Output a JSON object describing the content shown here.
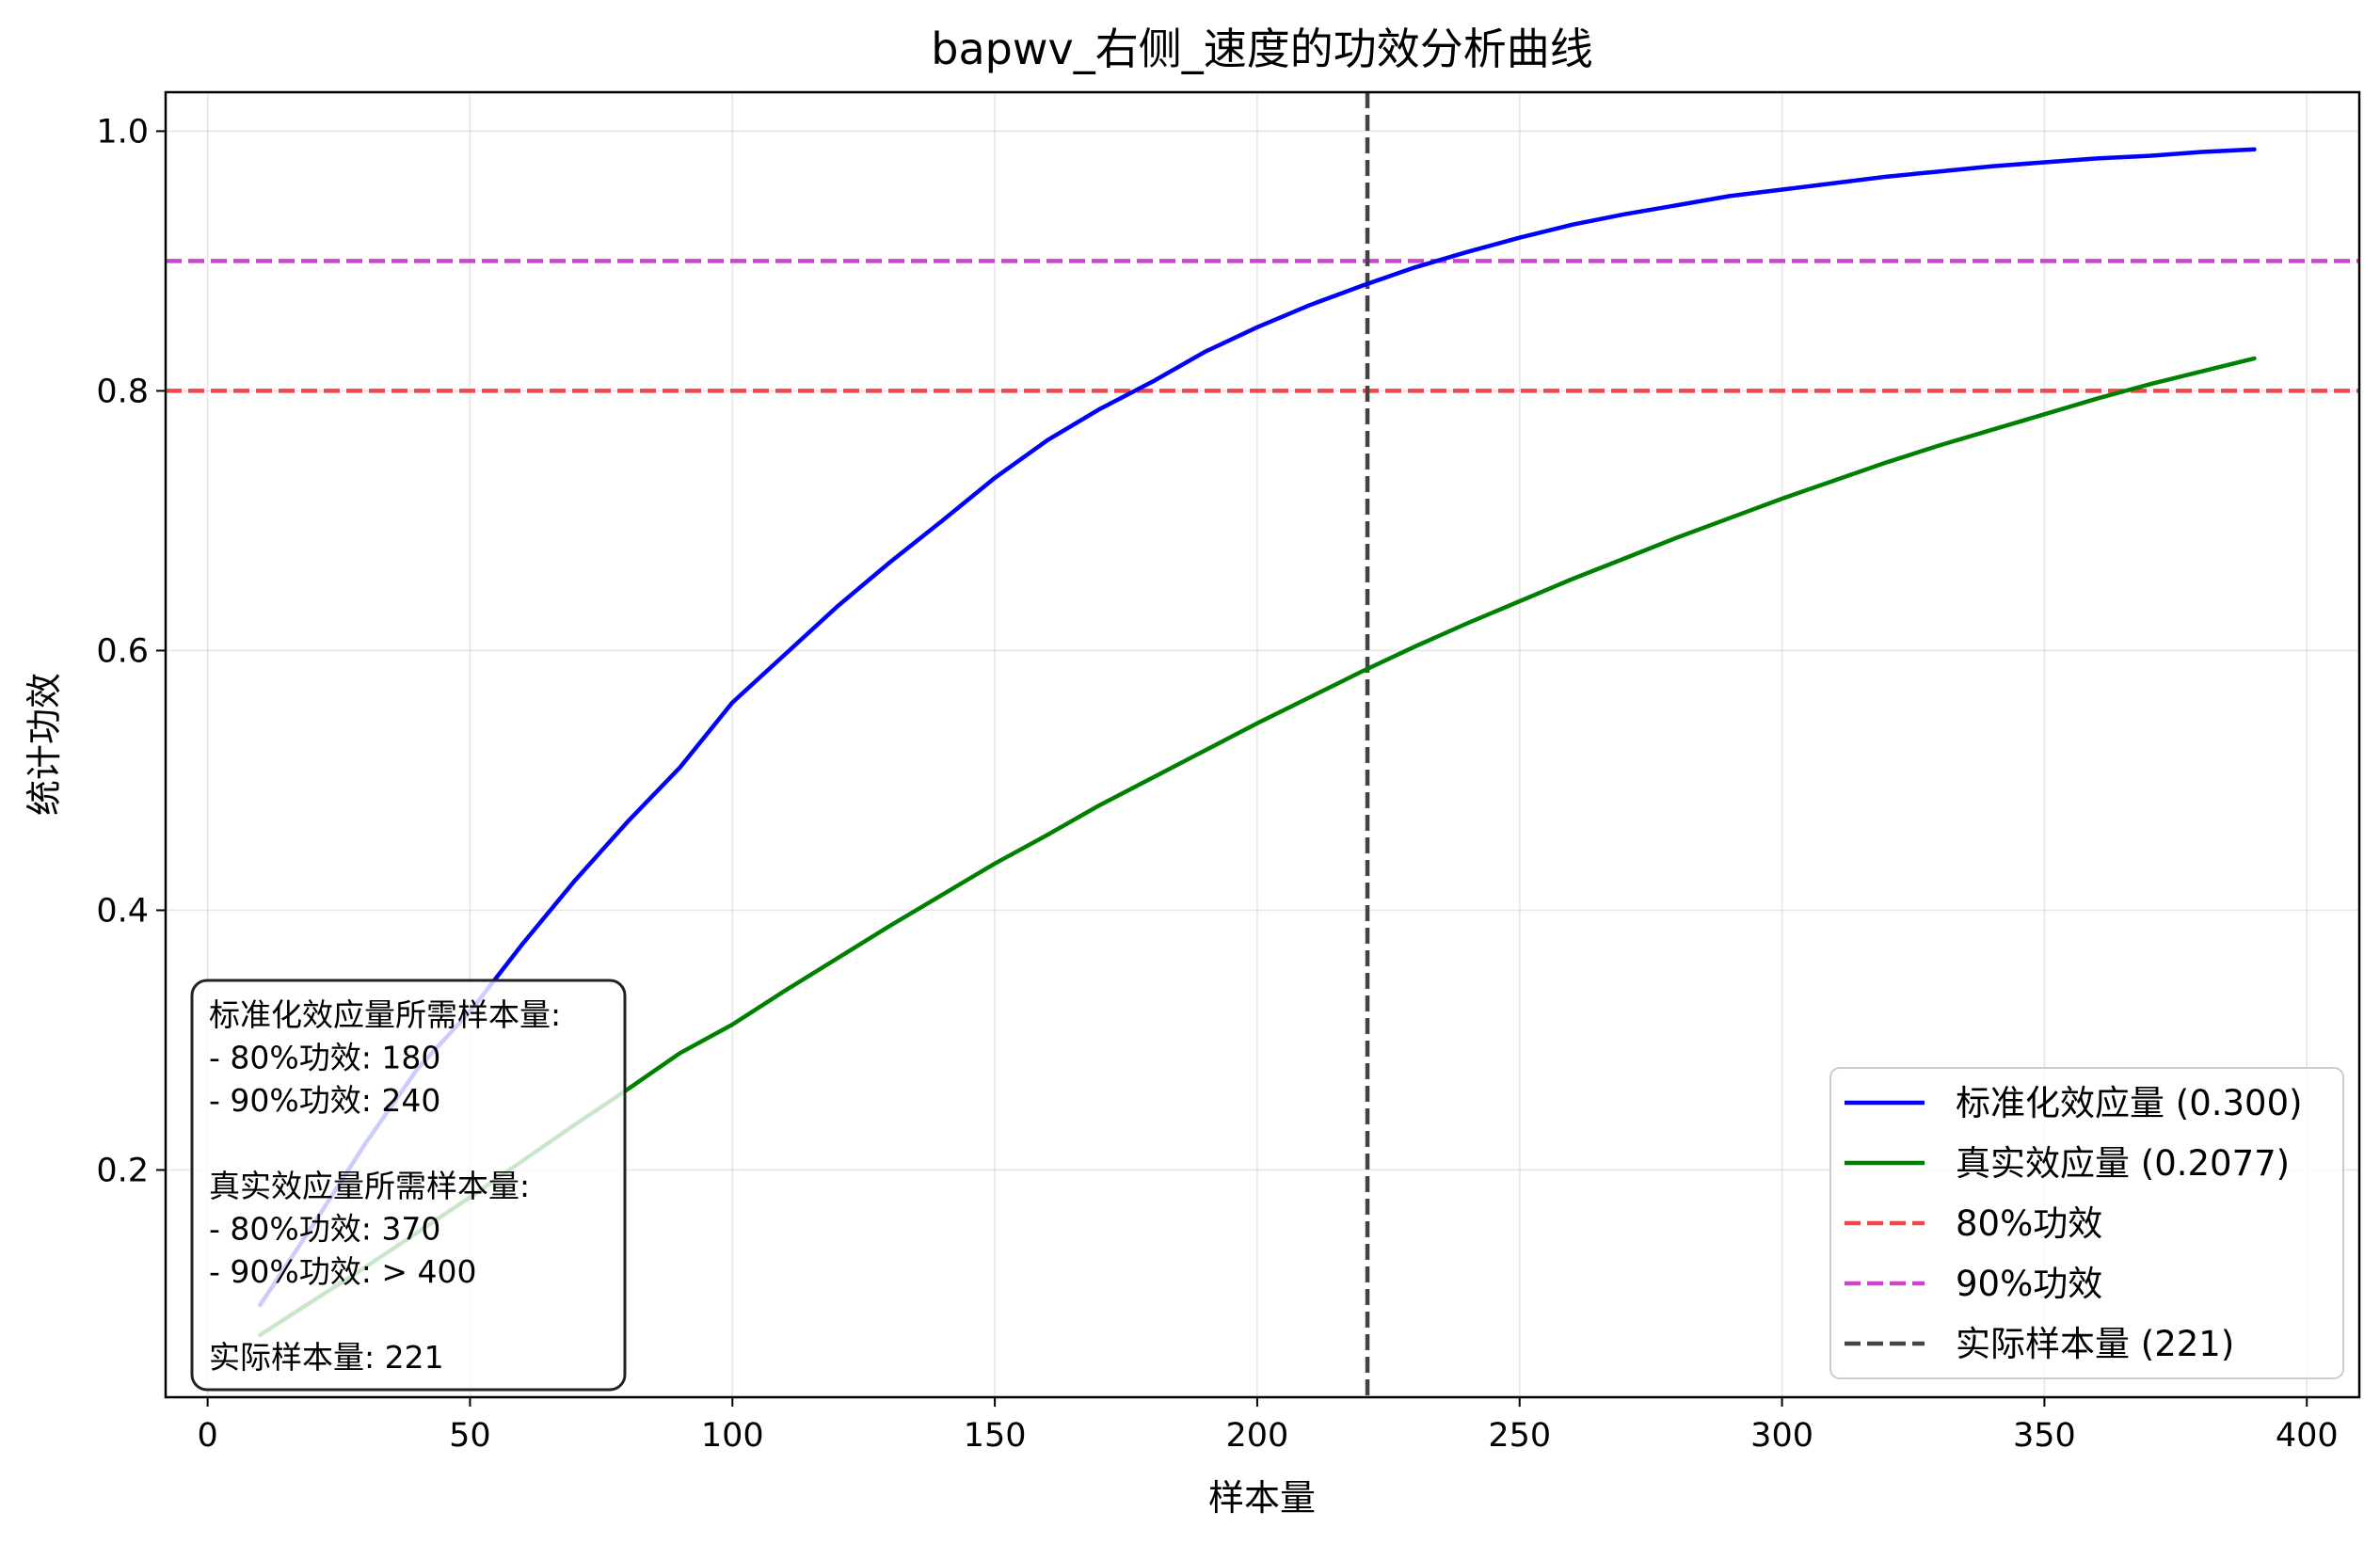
{
  "chart_data": {
    "type": "line",
    "title": "bapwv_右侧_速度的功效分析曲线",
    "xlabel": "样本量",
    "ylabel": "统计功效",
    "xlim": [
      -8,
      410
    ],
    "ylim": [
      0.025,
      1.03
    ],
    "xticks": [
      0,
      50,
      100,
      150,
      200,
      250,
      300,
      350,
      400
    ],
    "yticks": [
      0.2,
      0.4,
      0.6,
      0.8,
      1.0
    ],
    "ytick_labels": [
      "0.2",
      "0.4",
      "0.6",
      "0.8",
      "1.0"
    ],
    "grid": true,
    "legend_position": "lower-right",
    "series": [
      {
        "name": "标准化效应量 (0.300)",
        "color": "#0000ff",
        "x": [
          10,
          20,
          30,
          40,
          50,
          60,
          70,
          80,
          90,
          100,
          110,
          120,
          130,
          140,
          150,
          160,
          170,
          180,
          190,
          200,
          210,
          220,
          230,
          240,
          250,
          260,
          270,
          280,
          290,
          300,
          310,
          320,
          330,
          340,
          350,
          360,
          370,
          380,
          390
        ],
        "y": [
          0.096,
          0.157,
          0.22,
          0.278,
          0.322,
          0.374,
          0.423,
          0.468,
          0.51,
          0.56,
          0.597,
          0.634,
          0.668,
          0.7,
          0.733,
          0.762,
          0.786,
          0.807,
          0.83,
          0.849,
          0.866,
          0.881,
          0.895,
          0.907,
          0.918,
          0.928,
          0.936,
          0.943,
          0.95,
          0.955,
          0.96,
          0.965,
          0.969,
          0.973,
          0.976,
          0.979,
          0.981,
          0.984,
          0.986
        ]
      },
      {
        "name": "真实效应量 (0.2077)",
        "color": "#008000",
        "x": [
          10,
          20,
          30,
          40,
          50,
          60,
          70,
          80,
          90,
          100,
          110,
          120,
          130,
          140,
          150,
          160,
          170,
          180,
          190,
          200,
          210,
          220,
          230,
          240,
          250,
          260,
          270,
          280,
          290,
          300,
          310,
          320,
          330,
          340,
          350,
          360,
          370,
          380,
          390
        ],
        "y": [
          0.073,
          0.099,
          0.125,
          0.152,
          0.179,
          0.207,
          0.235,
          0.262,
          0.29,
          0.312,
          0.338,
          0.363,
          0.388,
          0.412,
          0.436,
          0.458,
          0.481,
          0.502,
          0.523,
          0.544,
          0.564,
          0.584,
          0.603,
          0.621,
          0.638,
          0.655,
          0.671,
          0.687,
          0.702,
          0.717,
          0.731,
          0.745,
          0.758,
          0.77,
          0.782,
          0.794,
          0.805,
          0.815,
          0.825
        ]
      }
    ],
    "reference_lines": [
      {
        "name": "80%功效",
        "orientation": "horizontal",
        "value": 0.8,
        "color": "#f04848"
      },
      {
        "name": "90%功效",
        "orientation": "horizontal",
        "value": 0.9,
        "color": "#cc44cc"
      },
      {
        "name": "实际样本量 (221)",
        "orientation": "vertical",
        "value": 221,
        "color": "#444444"
      }
    ],
    "annotation_box": {
      "lines": [
        "标准化效应量所需样本量:",
        "  - 80%功效: 180",
        "  - 90%功效: 240",
        "",
        "真实效应量所需样本量:",
        "  - 80%功效: 370",
        "  - 90%功效: > 400",
        "",
        "实际样本量: 221"
      ]
    }
  }
}
